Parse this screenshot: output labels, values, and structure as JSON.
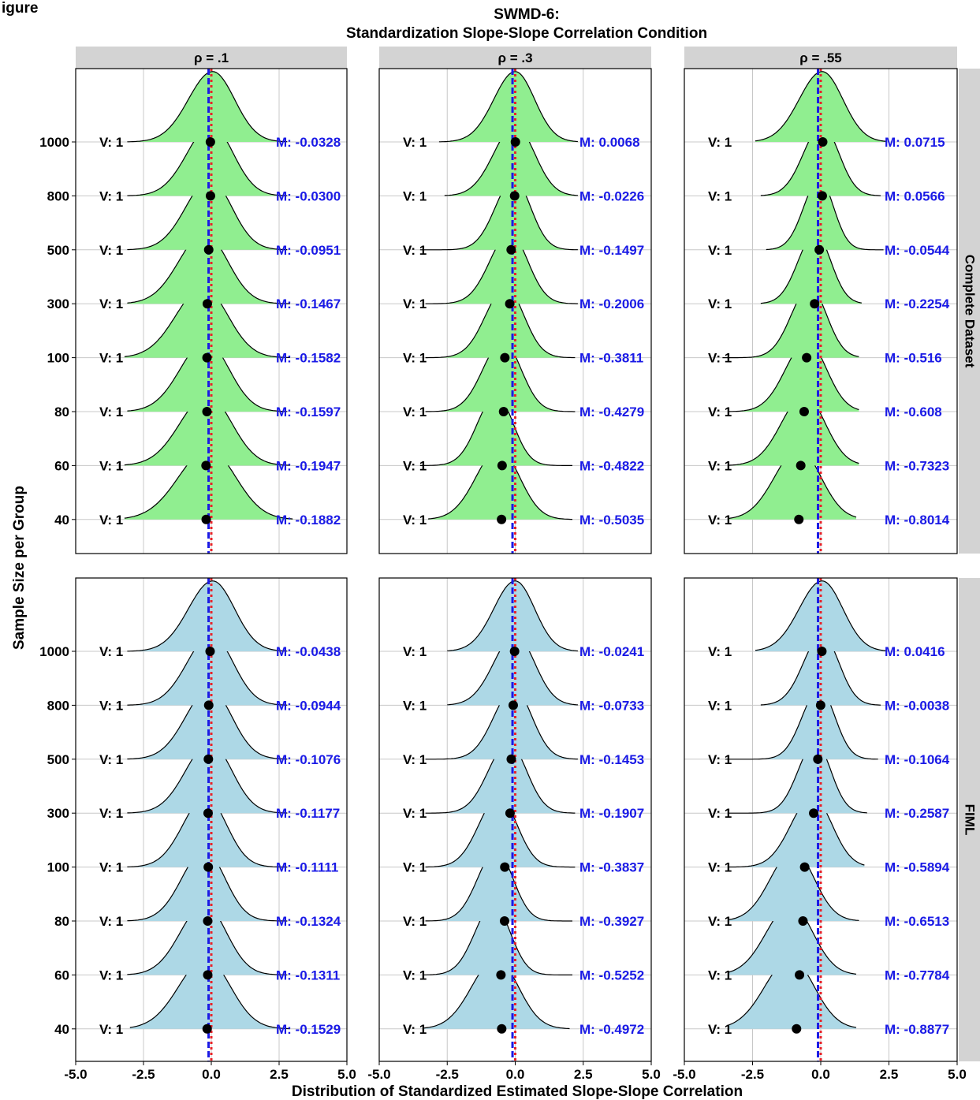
{
  "figure_label": "igure",
  "chart_data": {
    "type": "ridgeline",
    "title": "SWMD-6:",
    "subtitle": "Standardization Slope-Slope Correlation Condition",
    "xlabel": "Distribution of Standardized Estimated Slope-Slope Correlation",
    "ylabel": "Sample Size per Group",
    "xlim": [
      -5.0,
      5.0
    ],
    "x_ticks": [
      "-5.0",
      "-2.5",
      "0.0",
      "2.5",
      "5.0"
    ],
    "y_categories": [
      "1000",
      "800",
      "500",
      "300",
      "100",
      "80",
      "60",
      "40"
    ],
    "column_facets": [
      "ρ = .1",
      "ρ = .3",
      "ρ = .55"
    ],
    "row_facets": [
      "Complete Dataset",
      "FIML"
    ],
    "grid": true,
    "reference_lines": [
      {
        "value": 0.0,
        "color": "#e8232a",
        "style": "dotted"
      },
      {
        "value": -0.1,
        "color": "#1a1ae6",
        "style": "dashed"
      }
    ],
    "colors": {
      "complete_fill": "#90ee90",
      "fiml_fill": "#add8e6",
      "variance_text": "#000000",
      "mean_text": "#1a1ae6",
      "strip": "#d3d3d3"
    },
    "panels": [
      {
        "row": "Complete Dataset",
        "column": "ρ = .1",
        "variance_labels": [
          "V: 1",
          "V: 1",
          "V: 1",
          "V: 1",
          "V: 1",
          "V: 1",
          "V: 1",
          "V: 1"
        ],
        "mean_labels": [
          "M: -0.0328",
          "M: -0.0300",
          "M: -0.0951",
          "M: -0.1467",
          "M: -0.1582",
          "M: -0.1597",
          "M: -0.1947",
          "M: -0.1882"
        ],
        "means": [
          -0.0328,
          -0.03,
          -0.0951,
          -0.1467,
          -0.1582,
          -0.1597,
          -0.1947,
          -0.1882
        ],
        "mode": [
          0.05,
          0.0,
          -0.05,
          -0.25,
          -0.3,
          -0.2,
          -0.15,
          -0.1
        ],
        "spread": [
          0.85,
          0.85,
          0.85,
          0.9,
          0.95,
          0.9,
          0.95,
          1.05
        ],
        "range": [
          [
            -3.1,
            2.8
          ],
          [
            -3.1,
            2.8
          ],
          [
            -3.1,
            2.8
          ],
          [
            -3.1,
            2.9
          ],
          [
            -3.2,
            2.9
          ],
          [
            -3.1,
            2.8
          ],
          [
            -3.2,
            2.9
          ],
          [
            -3.2,
            3.0
          ]
        ]
      },
      {
        "row": "Complete Dataset",
        "column": "ρ = .3",
        "variance_labels": [
          "V: 1",
          "V: 1",
          "V: 1",
          "V: 1",
          "V: 1",
          "V: 1",
          "V: 1",
          "V: 1"
        ],
        "mean_labels": [
          "M: 0.0068",
          "M: -0.0226",
          "M: -0.1497",
          "M: -0.2006",
          "M: -0.3811",
          "M: -0.4279",
          "M: -0.4822",
          "M: -0.5035"
        ],
        "means": [
          0.0068,
          -0.0226,
          -0.1497,
          -0.2006,
          -0.3811,
          -0.4279,
          -0.4822,
          -0.5035
        ],
        "mode": [
          0.0,
          0.0,
          -0.05,
          -0.2,
          -0.35,
          -0.45,
          -0.7,
          -0.6
        ],
        "spread": [
          0.75,
          0.75,
          0.65,
          0.7,
          0.7,
          0.7,
          0.65,
          0.8
        ],
        "range": [
          [
            -2.8,
            2.3
          ],
          [
            -2.6,
            2.3
          ],
          [
            -3.5,
            2.3
          ],
          [
            -3.3,
            2.3
          ],
          [
            -3.3,
            2.2
          ],
          [
            -3.3,
            2.2
          ],
          [
            -3.5,
            2.1
          ],
          [
            -3.2,
            2.1
          ]
        ]
      },
      {
        "row": "Complete Dataset",
        "column": "ρ = .55",
        "variance_labels": [
          "V: 1",
          "V: 1",
          "V: 1",
          "V: 1",
          "V: 1",
          "V: 1",
          "V: 1",
          "V: 1"
        ],
        "mean_labels": [
          "M: 0.0715",
          "M: 0.0566",
          "M: -0.0544",
          "M: -0.2254",
          "M: -0.516",
          "M: -0.608",
          "M: -0.7323",
          "M: -0.8014"
        ],
        "means": [
          0.0715,
          0.0566,
          -0.0544,
          -0.2254,
          -0.516,
          -0.608,
          -0.7323,
          -0.8014
        ],
        "mode": [
          0.05,
          0.05,
          -0.05,
          -0.2,
          -0.4,
          -0.5,
          -0.6,
          -0.8
        ],
        "spread": [
          0.8,
          0.65,
          0.55,
          0.6,
          0.65,
          0.75,
          0.8,
          0.85
        ],
        "range": [
          [
            -2.4,
            2.4
          ],
          [
            -2.2,
            2.2
          ],
          [
            -2.0,
            2.3
          ],
          [
            -2.2,
            1.5
          ],
          [
            -3.6,
            1.4
          ],
          [
            -3.4,
            1.4
          ],
          [
            -3.4,
            1.4
          ],
          [
            -3.4,
            1.3
          ]
        ]
      },
      {
        "row": "FIML",
        "column": "ρ = .1",
        "variance_labels": [
          "V: 1",
          "V: 1",
          "V: 1",
          "V: 1",
          "V: 1",
          "V: 1",
          "V: 1",
          "V: 1"
        ],
        "mean_labels": [
          "M: -0.0438",
          "M: -0.0944",
          "M: -0.1076",
          "M: -0.1177",
          "M: -0.1111",
          "M: -0.1324",
          "M: -0.1311",
          "M: -0.1529"
        ],
        "means": [
          -0.0438,
          -0.0944,
          -0.1076,
          -0.1177,
          -0.1111,
          -0.1324,
          -0.1311,
          -0.1529
        ],
        "mode": [
          0.05,
          0.0,
          -0.05,
          -0.05,
          -0.2,
          -0.25,
          -0.25,
          -0.2
        ],
        "spread": [
          0.85,
          0.85,
          0.85,
          0.85,
          0.8,
          0.8,
          0.85,
          0.95
        ],
        "range": [
          [
            -3.1,
            2.8
          ],
          [
            -3.1,
            2.8
          ],
          [
            -3.1,
            2.8
          ],
          [
            -3.1,
            2.8
          ],
          [
            -3.1,
            2.8
          ],
          [
            -3.1,
            2.8
          ],
          [
            -3.1,
            2.8
          ],
          [
            -3.0,
            2.9
          ]
        ]
      },
      {
        "row": "FIML",
        "column": "ρ = .3",
        "variance_labels": [
          "V: 1",
          "V: 1",
          "V: 1",
          "V: 1",
          "V: 1",
          "V: 1",
          "V: 1",
          "V: 1"
        ],
        "mean_labels": [
          "M: -0.0241",
          "M: -0.0733",
          "M: -0.1453",
          "M: -0.1907",
          "M: -0.3837",
          "M: -0.3927",
          "M: -0.5252",
          "M: -0.4972"
        ],
        "means": [
          -0.0241,
          -0.0733,
          -0.1453,
          -0.1907,
          -0.3837,
          -0.3927,
          -0.5252,
          -0.4972
        ],
        "mode": [
          0.0,
          0.0,
          -0.05,
          -0.25,
          -0.6,
          -0.7,
          -0.8,
          -0.7
        ],
        "spread": [
          0.75,
          0.75,
          0.7,
          0.7,
          0.7,
          0.65,
          0.65,
          0.85
        ],
        "range": [
          [
            -2.5,
            2.3
          ],
          [
            -2.5,
            2.3
          ],
          [
            -3.3,
            2.3
          ],
          [
            -3.3,
            2.2
          ],
          [
            -3.3,
            2.2
          ],
          [
            -3.3,
            2.1
          ],
          [
            -3.4,
            2.1
          ],
          [
            -3.4,
            2.0
          ]
        ]
      },
      {
        "row": "FIML",
        "column": "ρ = .55",
        "variance_labels": [
          "V: 1",
          "V: 1",
          "V: 1",
          "V: 1",
          "V: 1",
          "V: 1",
          "V: 1",
          "V: 1"
        ],
        "mean_labels": [
          "M: 0.0416",
          "M: -0.0038",
          "M: -0.1064",
          "M: -0.2587",
          "M: -0.5894",
          "M: -0.6513",
          "M: -0.7784",
          "M: -0.8877"
        ],
        "means": [
          0.0416,
          -0.0038,
          -0.1064,
          -0.2587,
          -0.5894,
          -0.6513,
          -0.7784,
          -0.8877
        ],
        "mode": [
          0.05,
          0.05,
          -0.05,
          -0.2,
          -0.3,
          -1.0,
          -1.1,
          -1.1
        ],
        "spread": [
          0.8,
          0.65,
          0.6,
          0.6,
          0.75,
          0.8,
          0.85,
          0.9
        ],
        "range": [
          [
            -2.4,
            2.4
          ],
          [
            -2.2,
            2.2
          ],
          [
            -3.5,
            2.1
          ],
          [
            -3.4,
            1.7
          ],
          [
            -3.4,
            1.6
          ],
          [
            -3.4,
            1.4
          ],
          [
            -3.4,
            1.3
          ],
          [
            -3.4,
            1.3
          ]
        ]
      }
    ]
  }
}
